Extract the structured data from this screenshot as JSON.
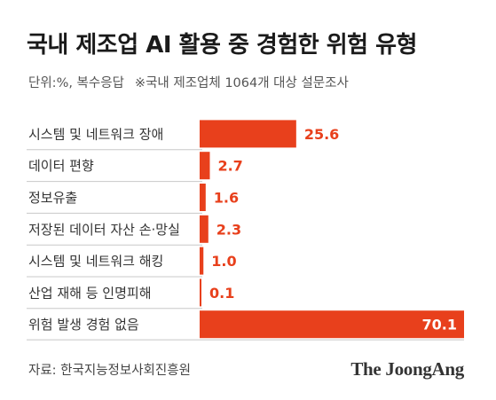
{
  "title": "국내 제조업 AI 활용 중 경험한 위험 유형",
  "subtitle_unit": "단위:%, 복수응답",
  "subtitle_note": "※국내 제조업체 1064개 대상 설문조사",
  "source": "자료: 한국지능정보사회진흥원",
  "logo": "The JoongAng",
  "colors": {
    "bar": "#e8401c",
    "divider": "#c8c8c8",
    "label_text": "#333333",
    "value_text_on_white": "#e8401c",
    "value_text_on_bar": "#ffffff"
  },
  "chart_data": {
    "type": "bar",
    "orientation": "horizontal",
    "categories": [
      "시스템 및 네트워크 장애",
      "데이터 편향",
      "정보유출",
      "저장된 데이터 자산 손·망실",
      "시스템 및 네트워크 해킹",
      "산업 재해 등 인명피해",
      "위험 발생 경험 없음"
    ],
    "values": [
      25.6,
      2.7,
      1.6,
      2.3,
      1.0,
      0.1,
      70.1
    ],
    "value_labels": [
      "25.6",
      "2.7",
      "1.6",
      "2.3",
      "1.0",
      "0.1",
      "70.1"
    ],
    "xlim": [
      0,
      70.1
    ],
    "grid": false,
    "legend": "none"
  }
}
